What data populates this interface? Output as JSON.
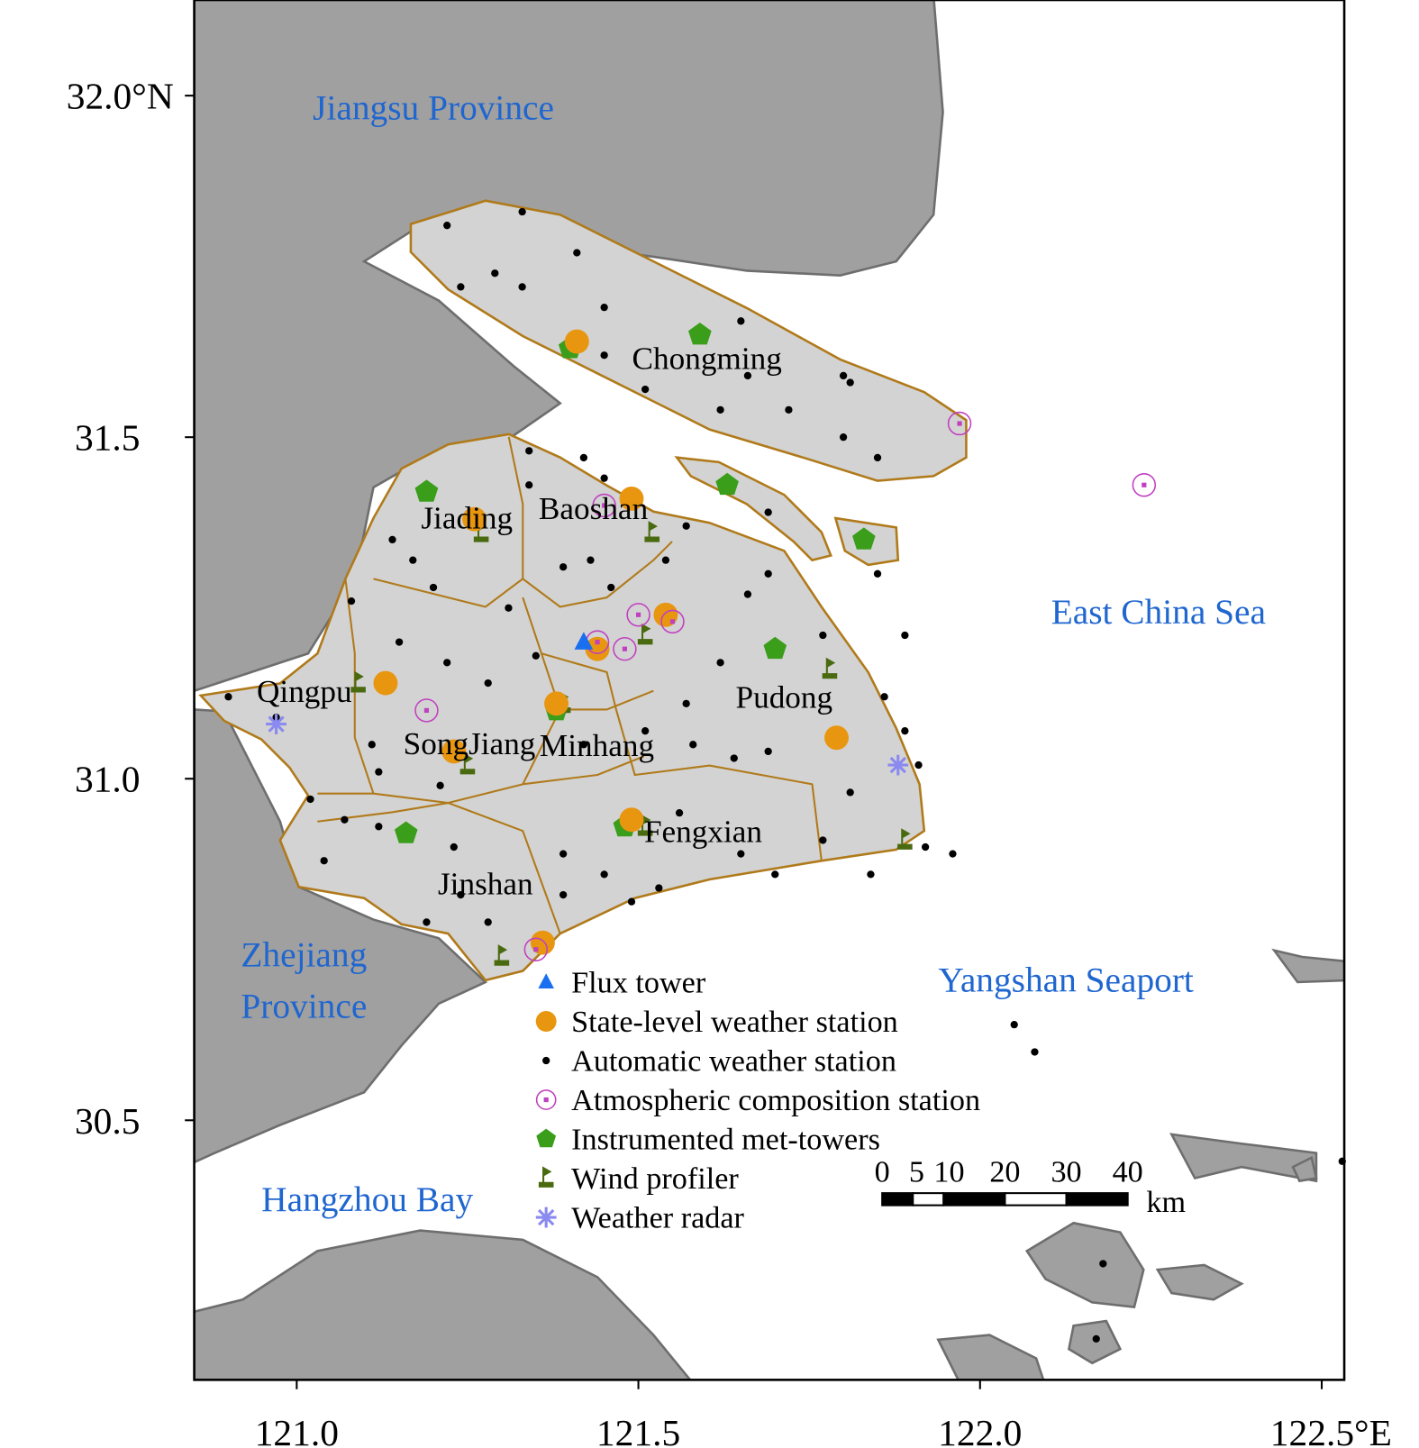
{
  "map": {
    "lonlim": [
      120.85,
      122.533
    ],
    "latlim": [
      30.12,
      32.14
    ],
    "lon_ticks": [
      {
        "value": 121.0,
        "label": "121.0"
      },
      {
        "value": 121.5,
        "label": "121.5"
      },
      {
        "value": 122.0,
        "label": "122.0"
      },
      {
        "value": 122.5,
        "label": "122.5°E"
      }
    ],
    "lat_ticks": [
      {
        "value": 32.0,
        "label": "32.0°N"
      },
      {
        "value": 31.5,
        "label": "31.5"
      },
      {
        "value": 31.0,
        "label": "31.0"
      },
      {
        "value": 30.5,
        "label": "30.5"
      }
    ],
    "region_labels": [
      "Jiangsu Province",
      "East China Sea",
      "Zhejiang\nProvince",
      "Yangshan Seaport",
      "Hangzhou Bay"
    ],
    "district_labels": [
      "Chongming",
      "Jiading",
      "Baoshan",
      "Qingpu",
      "Pudong",
      "SongJiang",
      "Minhang",
      "Fengxian",
      "Jinshan"
    ],
    "scale_bar": {
      "ticks": [
        0,
        5,
        10,
        20,
        30,
        40
      ],
      "unit": "km"
    },
    "legend": [
      {
        "name": "Flux tower",
        "marker": "triangle",
        "color": "#1a6ff0",
        "points": [
          [
            121.42,
            31.2
          ]
        ]
      },
      {
        "name": "State-level weather station",
        "marker": "circle",
        "color": "#e8960f",
        "points": [
          [
            121.41,
            31.64
          ],
          [
            121.49,
            31.41
          ],
          [
            121.26,
            31.38
          ],
          [
            121.54,
            31.24
          ],
          [
            121.44,
            31.19
          ],
          [
            121.38,
            31.11
          ],
          [
            121.13,
            31.14
          ],
          [
            121.23,
            31.04
          ],
          [
            121.79,
            31.06
          ],
          [
            121.49,
            30.94
          ],
          [
            121.36,
            30.76
          ]
        ]
      },
      {
        "name": "Automatic weather station",
        "marker": "dot",
        "color": "#000000",
        "points": [
          [
            121.22,
            31.81
          ],
          [
            121.33,
            31.83
          ],
          [
            121.41,
            31.77
          ],
          [
            121.29,
            31.74
          ],
          [
            121.33,
            31.72
          ],
          [
            121.24,
            31.72
          ],
          [
            121.45,
            31.69
          ],
          [
            121.65,
            31.67
          ],
          [
            121.51,
            31.57
          ],
          [
            121.45,
            31.62
          ],
          [
            121.66,
            31.59
          ],
          [
            121.8,
            31.59
          ],
          [
            121.81,
            31.58
          ],
          [
            121.72,
            31.54
          ],
          [
            121.62,
            31.54
          ],
          [
            121.8,
            31.5
          ],
          [
            121.85,
            31.47
          ],
          [
            121.42,
            31.47
          ],
          [
            121.34,
            31.48
          ],
          [
            121.45,
            31.44
          ],
          [
            121.34,
            31.43
          ],
          [
            121.57,
            31.37
          ],
          [
            121.69,
            31.39
          ],
          [
            121.85,
            31.3
          ],
          [
            121.14,
            31.35
          ],
          [
            121.17,
            31.32
          ],
          [
            121.2,
            31.28
          ],
          [
            121.39,
            31.31
          ],
          [
            121.43,
            31.32
          ],
          [
            121.54,
            31.32
          ],
          [
            121.46,
            31.28
          ],
          [
            121.66,
            31.27
          ],
          [
            121.69,
            31.3
          ],
          [
            121.77,
            31.21
          ],
          [
            121.89,
            31.21
          ],
          [
            121.86,
            31.12
          ],
          [
            121.89,
            31.07
          ],
          [
            121.91,
            31.02
          ],
          [
            121.81,
            30.98
          ],
          [
            121.92,
            30.9
          ],
          [
            121.96,
            30.89
          ],
          [
            121.69,
            31.04
          ],
          [
            121.64,
            31.03
          ],
          [
            121.58,
            31.05
          ],
          [
            121.62,
            31.17
          ],
          [
            121.57,
            31.11
          ],
          [
            121.51,
            31.07
          ],
          [
            121.42,
            31.05
          ],
          [
            121.35,
            31.18
          ],
          [
            121.31,
            31.25
          ],
          [
            121.28,
            31.14
          ],
          [
            121.22,
            31.17
          ],
          [
            121.15,
            31.2
          ],
          [
            121.08,
            31.26
          ],
          [
            120.9,
            31.12
          ],
          [
            120.97,
            31.09
          ],
          [
            121.11,
            31.05
          ],
          [
            121.12,
            31.01
          ],
          [
            121.02,
            30.97
          ],
          [
            121.07,
            30.94
          ],
          [
            121.12,
            30.93
          ],
          [
            121.21,
            30.99
          ],
          [
            121.23,
            30.9
          ],
          [
            121.39,
            30.89
          ],
          [
            121.45,
            30.86
          ],
          [
            121.56,
            30.95
          ],
          [
            121.65,
            30.89
          ],
          [
            121.7,
            30.86
          ],
          [
            121.77,
            30.91
          ],
          [
            121.84,
            30.86
          ],
          [
            121.53,
            30.84
          ],
          [
            121.49,
            30.82
          ],
          [
            121.39,
            30.83
          ],
          [
            121.28,
            30.79
          ],
          [
            121.19,
            30.79
          ],
          [
            121.04,
            30.88
          ],
          [
            121.24,
            30.83
          ],
          [
            122.05,
            30.64
          ],
          [
            122.08,
            30.6
          ],
          [
            122.18,
            30.29
          ],
          [
            122.17,
            30.18
          ],
          [
            122.53,
            30.44
          ]
        ]
      },
      {
        "name": "Atmospheric composition station",
        "marker": "ring",
        "color": "#c040c0",
        "points": [
          [
            121.97,
            31.52
          ],
          [
            122.24,
            31.43
          ],
          [
            121.45,
            31.4
          ],
          [
            121.5,
            31.24
          ],
          [
            121.55,
            31.23
          ],
          [
            121.44,
            31.2
          ],
          [
            121.48,
            31.19
          ],
          [
            121.19,
            31.1
          ],
          [
            121.35,
            30.75
          ]
        ]
      },
      {
        "name": "Instrumented met-towers",
        "marker": "pentagon",
        "color": "#3a9e1a",
        "points": [
          [
            121.59,
            31.65
          ],
          [
            121.63,
            31.43
          ],
          [
            121.19,
            31.42
          ],
          [
            121.83,
            31.35
          ],
          [
            121.7,
            31.19
          ],
          [
            121.16,
            30.92
          ],
          [
            121.48,
            30.93
          ],
          [
            121.38,
            31.1
          ],
          [
            121.4,
            31.63
          ]
        ]
      },
      {
        "name": "Wind profiler",
        "marker": "flag",
        "color": "#4a6a10",
        "points": [
          [
            121.52,
            31.36
          ],
          [
            121.27,
            31.36
          ],
          [
            121.39,
            31.11
          ],
          [
            121.51,
            31.21
          ],
          [
            121.78,
            31.16
          ],
          [
            121.25,
            31.02
          ],
          [
            121.51,
            30.93
          ],
          [
            121.89,
            30.91
          ],
          [
            121.3,
            30.74
          ],
          [
            121.09,
            31.14
          ]
        ]
      },
      {
        "name": "Weather radar",
        "marker": "star",
        "color": "#8a8af0",
        "points": [
          [
            120.97,
            31.08
          ],
          [
            121.88,
            31.02
          ]
        ]
      }
    ]
  }
}
